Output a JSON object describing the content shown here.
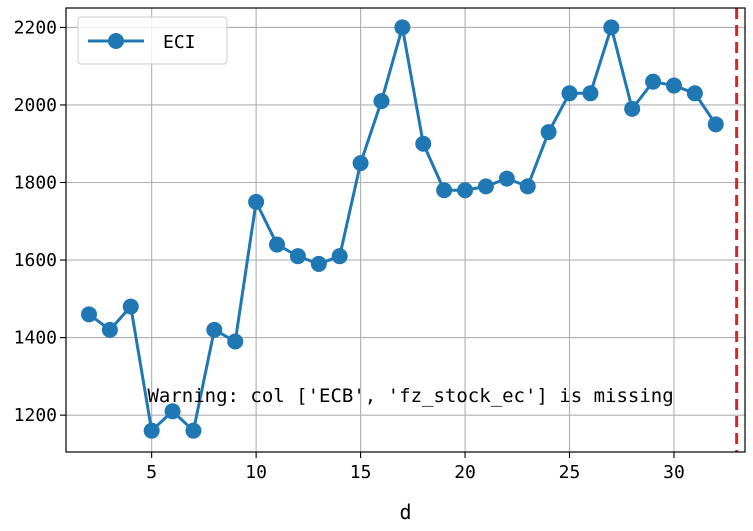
{
  "chart_data": {
    "type": "line",
    "title": "",
    "xlabel": "d",
    "ylabel": "",
    "x": [
      2,
      3,
      4,
      5,
      6,
      7,
      8,
      9,
      10,
      11,
      12,
      13,
      14,
      15,
      16,
      17,
      18,
      19,
      20,
      21,
      22,
      23,
      24,
      25,
      26,
      27,
      28,
      29,
      30,
      31,
      32
    ],
    "series": [
      {
        "name": "ECI",
        "color": "#1f77b4",
        "marker": "circle",
        "values": [
          1460,
          1420,
          1480,
          1160,
          1210,
          1160,
          1420,
          1390,
          1750,
          1640,
          1610,
          1590,
          1610,
          1850,
          2010,
          2200,
          1900,
          1780,
          1780,
          1790,
          1810,
          1790,
          1930,
          2030,
          2030,
          2200,
          1990,
          2060,
          2050,
          2030,
          1950
        ]
      }
    ],
    "xlim": [
      0.9,
      33.4
    ],
    "ylim": [
      1105,
      2250
    ],
    "xticks": [
      5,
      10,
      15,
      20,
      25,
      30
    ],
    "xtick_labels": [
      "5",
      "10",
      "15",
      "20",
      "25",
      "30"
    ],
    "yticks": [
      1200,
      1400,
      1600,
      1800,
      2000,
      2200
    ],
    "ytick_labels": [
      "1200",
      "1400",
      "1600",
      "1800",
      "2000",
      "2200"
    ],
    "grid": true,
    "legend_position": "top-left",
    "vline": {
      "x": 33,
      "color": "#d62728",
      "style": "dashed"
    },
    "annotation": {
      "text": "Warning: col ['ECB', 'fz_stock_ec'] is missing",
      "x": 4.8,
      "y": 1250
    }
  }
}
